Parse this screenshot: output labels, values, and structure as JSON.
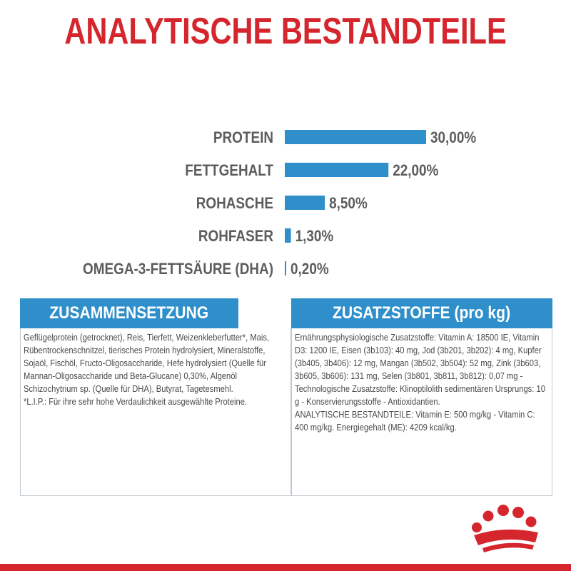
{
  "title": "ANALYTISCHE BESTANDTEILE",
  "chart_data": {
    "type": "bar",
    "orientation": "horizontal",
    "categories": [
      "PROTEIN",
      "FETTGEHALT",
      "ROHASCHE",
      "ROHFASER",
      "OMEGA-3-FETTSÄURE (DHA)"
    ],
    "values": [
      30.0,
      22.0,
      8.5,
      1.3,
      0.2
    ],
    "value_labels": [
      "30,00%",
      "22,00%",
      "8,50%",
      "1,30%",
      "0,20%"
    ],
    "bar_color": "#2f8fca",
    "xlim": [
      0,
      30
    ],
    "grid": false,
    "legend": "none"
  },
  "composition": {
    "header": "ZUSAMMENSETZUNG",
    "text": "Geflügelprotein (getrocknet), Reis, Tierfett, Weizenkleberfutter*, Mais, Rübentrockenschnitzel, tierisches Protein hydrolysiert, Mineralstoffe, Sojaöl, Fischöl, Fructo-Oligosaccharide, Hefe hydrolysiert (Quelle für Mannan-Oligosaccharide und Beta-Glucane) 0,30%, Algenöl Schizochytrium sp. (Quelle für DHA), Butyrat, Tagetesmehl.",
    "footnote": "*L.I.P.: Für ihre sehr hohe Verdaulichkeit ausgewählte Proteine."
  },
  "additives": {
    "header": "ZUSATZSTOFFE (pro kg)",
    "text": "Ernährungsphysiologische Zusatzstoffe: Vitamin A: 18500 IE, Vitamin D3: 1200 IE, Eisen (3b103): 40 mg, Jod (3b201, 3b202): 4 mg, Kupfer (3b405, 3b406): 12 mg, Mangan (3b502, 3b504): 52 mg, Zink (3b603, 3b605, 3b606): 131 mg, Selen (3b801, 3b811, 3b812): 0,07 mg - Technologische Zusatzstoffe: Klinoptilolith sedimentären Ursprungs: 10 g - Konservierungsstoffe - Antioxidantien.",
    "text2": "ANALYTISCHE BESTANDTEILE: Vitamin E: 500 mg/kg - Vitamin C: 400 mg/kg. Energiegehalt (ME): 4209 kcal/kg."
  },
  "brand": {
    "accent_color": "#d5262e",
    "logo_icon": "crown-icon"
  }
}
